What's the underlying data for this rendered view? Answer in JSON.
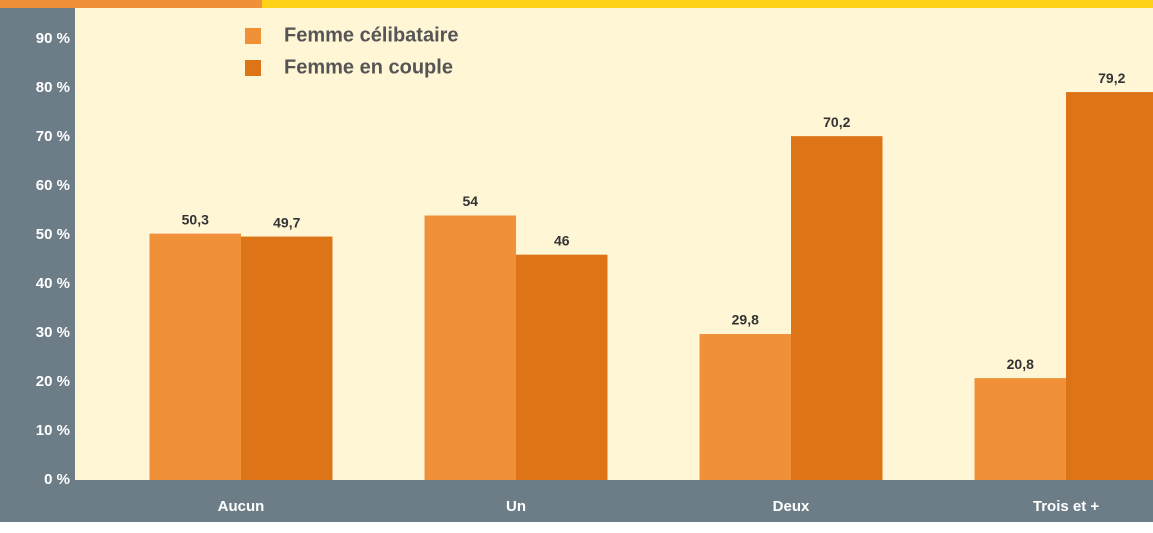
{
  "chart_data": {
    "type": "bar",
    "categories": [
      "Aucun",
      "Un",
      "Deux",
      "Trois et +"
    ],
    "series": [
      {
        "name": "Femme célibataire",
        "color": "#f0913a",
        "values": [
          50.3,
          54,
          29.8,
          20.8
        ],
        "value_labels": [
          "50,3",
          "54",
          "29,8",
          "20,8"
        ]
      },
      {
        "name": "Femme en couple",
        "color": "#dd7418",
        "values": [
          49.7,
          46,
          70.2,
          79.2
        ],
        "value_labels": [
          "49,7",
          "46",
          "70,2",
          "79,2"
        ]
      }
    ],
    "ylim": [
      0,
      98
    ],
    "yticks": [
      {
        "value": 0,
        "label": "0 %"
      },
      {
        "value": 10,
        "label": "10 %"
      },
      {
        "value": 20,
        "label": "20 %"
      },
      {
        "value": 30,
        "label": "30 %"
      },
      {
        "value": 40,
        "label": "40 %"
      },
      {
        "value": 50,
        "label": "50 %"
      },
      {
        "value": 60,
        "label": "60 %"
      },
      {
        "value": 70,
        "label": "70 %"
      },
      {
        "value": 80,
        "label": "80 %"
      },
      {
        "value": 90,
        "label": "90 %"
      }
    ],
    "legend": "top-left"
  }
}
